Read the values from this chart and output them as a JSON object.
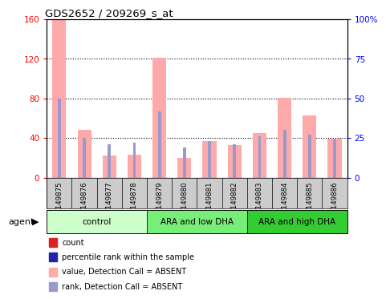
{
  "title": "GDS2652 / 209269_s_at",
  "samples": [
    "GSM149875",
    "GSM149876",
    "GSM149877",
    "GSM149878",
    "GSM149879",
    "GSM149880",
    "GSM149881",
    "GSM149882",
    "GSM149883",
    "GSM149884",
    "GSM149885",
    "GSM149886"
  ],
  "count_values": [
    160,
    48,
    22,
    23,
    121,
    20,
    37,
    33,
    45,
    81,
    63,
    39
  ],
  "rank_values_pct": [
    50,
    25,
    21,
    22,
    42,
    19,
    23,
    21,
    26,
    30,
    27,
    24
  ],
  "ylim_left": [
    0,
    160
  ],
  "ylim_right": [
    0,
    100
  ],
  "yticks_left": [
    0,
    40,
    80,
    120,
    160
  ],
  "yticks_right": [
    0,
    25,
    50,
    75,
    100
  ],
  "yticklabels_left": [
    "0",
    "40",
    "80",
    "120",
    "160"
  ],
  "yticklabels_right": [
    "0",
    "25",
    "50",
    "75",
    "100%"
  ],
  "count_bar_width": 0.55,
  "rank_bar_width": 0.12,
  "count_color": "#ffaaaa",
  "rank_color": "#9999cc",
  "groups": [
    {
      "label": "control",
      "start": 0,
      "end": 4,
      "color": "#ccffcc"
    },
    {
      "label": "ARA and low DHA",
      "start": 4,
      "end": 8,
      "color": "#77ee77"
    },
    {
      "label": "ARA and high DHA",
      "start": 8,
      "end": 12,
      "color": "#33cc33"
    }
  ],
  "legend_colors": [
    "#dd2222",
    "#2222aa",
    "#ffaaaa",
    "#9999cc"
  ],
  "legend_labels": [
    "count",
    "percentile rank within the sample",
    "value, Detection Call = ABSENT",
    "rank, Detection Call = ABSENT"
  ]
}
